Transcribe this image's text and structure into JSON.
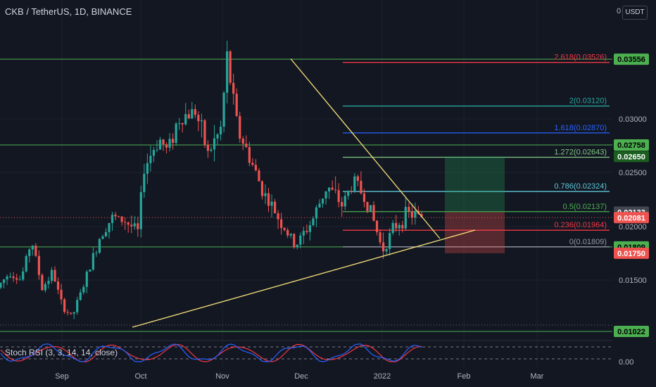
{
  "header": {
    "title": "CKB / TetherUS, 1D, BINANCE",
    "currency_button": "USDT",
    "top_axis_value": "0"
  },
  "indicator": {
    "label": "Stoch RSI (3, 3, 14, 14, close)",
    "axis_value": "0.00"
  },
  "colors": {
    "background": "#131722",
    "up": "#26a69a",
    "down": "#ef5350",
    "green_line": "#4caf50",
    "trend_line": "#ffeb3b",
    "long_target": "#1b5e20",
    "long_stop": "#8b2a2a",
    "stoch_k": "#2962ff",
    "stoch_d": "#f23645"
  },
  "chart_data": {
    "type": "candlestick",
    "title": "CKB / TetherUS, 1D, BINANCE",
    "x_ticks": [
      "Sep",
      "Oct",
      "Nov",
      "Dec",
      "2022",
      "Feb",
      "Mar"
    ],
    "y_ticks": [
      "0.03000",
      "0.02500",
      "0.02000",
      "0.01500"
    ],
    "ylim": [
      0.0093,
      0.0385
    ],
    "key_prices": {
      "start": 0.0143,
      "low_oct": 0.0107,
      "high_nov": 0.0356,
      "dec_low": 0.0181,
      "late_dec_high": 0.0243,
      "jan_low": 0.0178,
      "last": 0.0209
    },
    "horizontal_levels": [
      {
        "price": 0.03556,
        "label": "0.03556"
      },
      {
        "price": 0.02758,
        "label": "0.02758"
      },
      {
        "price": 0.01809,
        "label": "0.01809"
      },
      {
        "price": 0.01022,
        "label": "0.01022"
      }
    ],
    "fibonacci": [
      {
        "label": "2.618(0.03526)",
        "price": 0.03526,
        "color": "#f23645"
      },
      {
        "label": "2(0.03120)",
        "price": 0.0312,
        "color": "#26a69a"
      },
      {
        "label": "1.618(0.02870)",
        "price": 0.0287,
        "color": "#2962ff"
      },
      {
        "label": "1.272(0.02643)",
        "price": 0.02643,
        "color": "#81c784"
      },
      {
        "label": "0.786(0.02324)",
        "price": 0.02324,
        "color": "#5ec8d8"
      },
      {
        "label": "0.5(0.02137)",
        "price": 0.02137,
        "color": "#4caf50"
      },
      {
        "label": "0.236(0.01964)",
        "price": 0.01964,
        "color": "#f23645"
      },
      {
        "label": "0(0.01809)",
        "price": 0.01809,
        "color": "#9598a1"
      }
    ],
    "price_tags": [
      {
        "label": "0.03556",
        "price": 0.03556,
        "bg": "#4caf50",
        "fg": "#000000"
      },
      {
        "label": "0.02758",
        "price": 0.02758,
        "bg": "#4caf50",
        "fg": "#000000"
      },
      {
        "label": "0.02650",
        "price": 0.0265,
        "bg": "#1b5e20",
        "fg": "#ffffff"
      },
      {
        "label": "0.02133",
        "price": 0.02133,
        "bg": "#434651",
        "fg": "#ffffff"
      },
      {
        "label": "0.02081",
        "price": 0.02081,
        "bg": "#ef5350",
        "fg": "#ffffff"
      },
      {
        "label": "0.01809",
        "price": 0.01809,
        "bg": "#4caf50",
        "fg": "#000000"
      },
      {
        "label": "0.01750",
        "price": 0.0175,
        "bg": "#ef5350",
        "fg": "#ffffff"
      },
      {
        "label": "0.01022",
        "price": 0.01022,
        "bg": "#4caf50",
        "fg": "#000000"
      }
    ],
    "position": {
      "entry": 0.02133,
      "target": 0.0265,
      "stop": 0.0175
    }
  }
}
